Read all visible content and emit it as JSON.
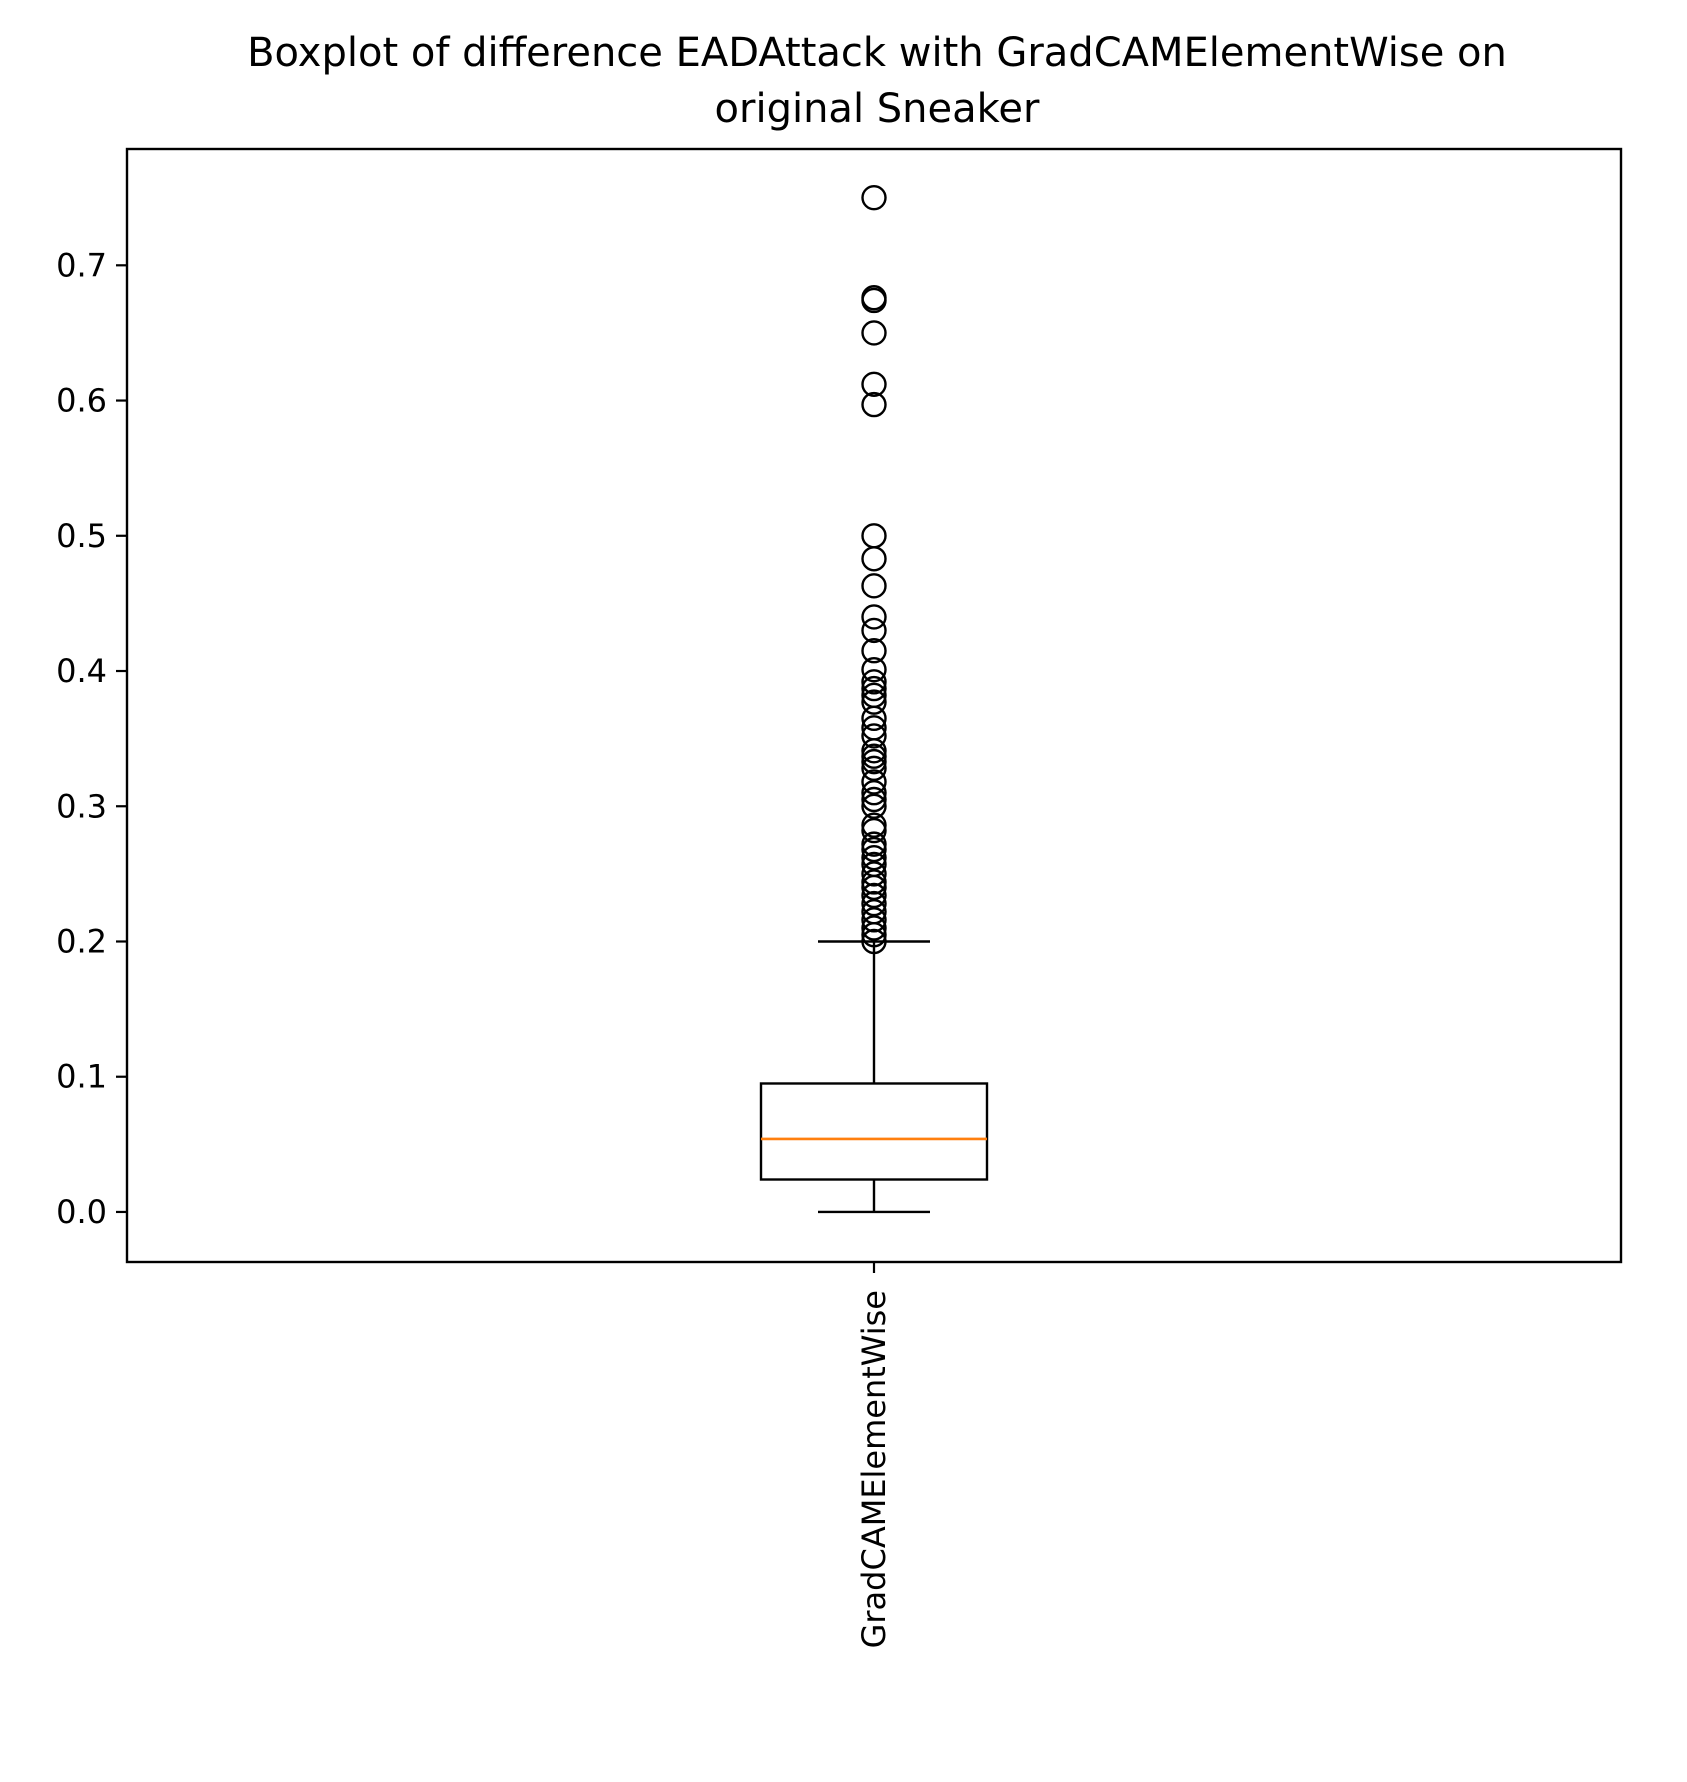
{
  "chart_data": {
    "type": "boxplot",
    "title": "Boxplot of difference EADAttack with GradCAMElementWise on original Sneaker",
    "title_lines": [
      "Boxplot of difference EADAttack with GradCAMElementWise on",
      "original Sneaker"
    ],
    "xlabel": "",
    "ylabel": "",
    "ylim": [
      -0.037,
      0.786
    ],
    "yticks": [
      0.0,
      0.1,
      0.2,
      0.3,
      0.4,
      0.5,
      0.6,
      0.7
    ],
    "ytick_labels": [
      "0.0",
      "0.1",
      "0.2",
      "0.3",
      "0.4",
      "0.5",
      "0.6",
      "0.7"
    ],
    "categories": [
      "GradCAMElementWise"
    ],
    "x_tick_rotation": "vertical",
    "grid": false,
    "boxes": [
      {
        "category": "GradCAMElementWise",
        "whisker_low": 0.0,
        "q1": 0.024,
        "median": 0.054,
        "q3": 0.095,
        "whisker_high": 0.2,
        "outliers": [
          0.75,
          0.676,
          0.674,
          0.65,
          0.612,
          0.597,
          0.5,
          0.483,
          0.463,
          0.44,
          0.43,
          0.415,
          0.401,
          0.392,
          0.387,
          0.382,
          0.377,
          0.365,
          0.358,
          0.352,
          0.341,
          0.337,
          0.333,
          0.328,
          0.318,
          0.31,
          0.305,
          0.3,
          0.286,
          0.282,
          0.272,
          0.268,
          0.262,
          0.257,
          0.25,
          0.244,
          0.24,
          0.234,
          0.228,
          0.222,
          0.216,
          0.21,
          0.205,
          0.2
        ]
      }
    ],
    "colors": {
      "box": "#000000",
      "median": "#ff7f0e",
      "outlier_edge": "#000000"
    }
  }
}
